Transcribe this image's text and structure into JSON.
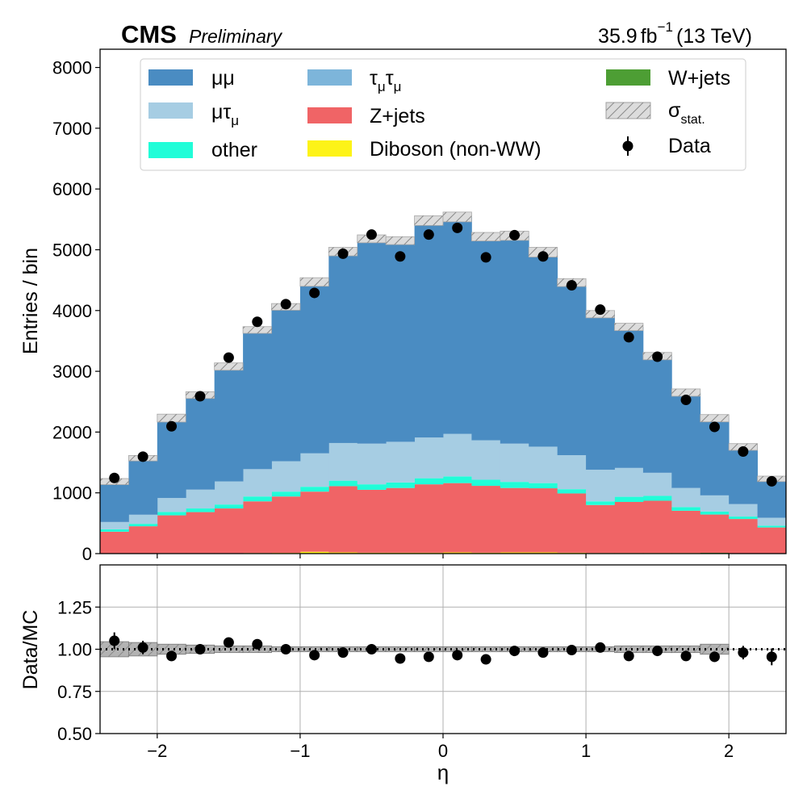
{
  "header": {
    "experiment": "CMS",
    "status": "Preliminary",
    "lumi_value": "35.9",
    "lumi_unit": "fb",
    "lumi_exponent": "−1",
    "energy": "(13 TeV)"
  },
  "colors": {
    "mumu": "#4a8cc2",
    "mutau": "#a6cde3",
    "tautau": "#7db5da",
    "zjets": "#f06466",
    "other": "#21fdd8",
    "diboson": "#fdf318",
    "wjets": "#4d9e34",
    "stat_band": "#dcdcdc",
    "stat_band_ratio": "#b3b3b3",
    "data": "#000000"
  },
  "chart_data": [
    {
      "type": "area",
      "stacked": true,
      "title": "",
      "xlabel": "",
      "ylabel": "Entries / bin",
      "xlim": [
        -2.4,
        2.4
      ],
      "ylim": [
        0,
        8300
      ],
      "yticks": [
        0,
        1000,
        2000,
        3000,
        4000,
        5000,
        6000,
        7000,
        8000
      ],
      "xticks": [
        -2,
        -1,
        0,
        1,
        2
      ],
      "grid": false,
      "legend_position": "top",
      "legend": {
        "mumu": "μμ",
        "mutau": "μτ",
        "mutau_sub": "μ",
        "tautau": "τ",
        "tautau_sub": "μ",
        "zjets": "Z+jets",
        "other": "other",
        "diboson": "Diboson (non-WW)",
        "wjets": "W+jets",
        "stat": "σ",
        "stat_sub": "stat.",
        "data": "Data"
      },
      "bin_edges": [
        -2.4,
        -2.2,
        -2.0,
        -1.8,
        -1.6,
        -1.4,
        -1.2,
        -1.0,
        -0.8,
        -0.6,
        -0.4,
        -0.2,
        0.0,
        0.2,
        0.4,
        0.6,
        0.8,
        1.0,
        1.2,
        1.4,
        1.6,
        1.8,
        2.0,
        2.2,
        2.4
      ],
      "series": [
        {
          "key": "diboson",
          "name": "Diboson (non-WW)",
          "values": [
            5,
            5,
            8,
            8,
            8,
            10,
            12,
            30,
            20,
            15,
            15,
            15,
            20,
            15,
            20,
            20,
            15,
            10,
            10,
            10,
            10,
            8,
            5,
            5
          ]
        },
        {
          "key": "wjets",
          "name": "W+jets",
          "values": [
            0,
            0,
            0,
            0,
            0,
            0,
            0,
            0,
            0,
            0,
            0,
            0,
            0,
            0,
            0,
            0,
            0,
            0,
            0,
            0,
            0,
            5,
            0,
            0
          ]
        },
        {
          "key": "zjets",
          "name": "Z+jets",
          "values": [
            355,
            445,
            622,
            675,
            735,
            850,
            928,
            990,
            1090,
            1035,
            1065,
            1125,
            1140,
            1100,
            1060,
            1055,
            975,
            790,
            840,
            860,
            695,
            630,
            565,
            425
          ]
        },
        {
          "key": "other",
          "name": "other",
          "values": [
            40,
            40,
            55,
            60,
            65,
            80,
            80,
            80,
            90,
            90,
            90,
            100,
            110,
            100,
            100,
            85,
            70,
            60,
            85,
            80,
            60,
            50,
            40,
            30
          ]
        },
        {
          "key": "tautau",
          "name": "τμτμ",
          "values": [
            0,
            0,
            0,
            0,
            0,
            0,
            0,
            0,
            0,
            0,
            0,
            0,
            0,
            0,
            0,
            0,
            0,
            0,
            0,
            0,
            0,
            0,
            0,
            0
          ]
        },
        {
          "key": "mutau",
          "name": "μτμ",
          "values": [
            120,
            150,
            230,
            310,
            380,
            450,
            500,
            550,
            620,
            670,
            670,
            670,
            700,
            650,
            630,
            600,
            560,
            520,
            475,
            380,
            315,
            265,
            205,
            130
          ]
        },
        {
          "key": "mumu",
          "name": "μμ",
          "values": [
            665,
            930,
            1315,
            1555,
            1890,
            2290,
            2540,
            2820,
            3150,
            3370,
            3310,
            3570,
            3570,
            3350,
            3420,
            3200,
            2840,
            2560,
            2320,
            1920,
            1570,
            1270,
            940,
            640
          ]
        }
      ],
      "stat_uncertainty": [
        50,
        45,
        65,
        55,
        60,
        55,
        55,
        70,
        70,
        65,
        65,
        80,
        80,
        70,
        75,
        80,
        65,
        60,
        60,
        60,
        60,
        60,
        55,
        45
      ],
      "data": {
        "x": [
          -2.3,
          -2.1,
          -1.9,
          -1.7,
          -1.5,
          -1.3,
          -1.1,
          -0.9,
          -0.7,
          -0.5,
          -0.3,
          -0.1,
          0.1,
          0.3,
          0.5,
          0.7,
          0.9,
          1.1,
          1.3,
          1.5,
          1.7,
          1.9,
          2.1,
          2.3
        ],
        "y": [
          1245,
          1595,
          2095,
          2590,
          3225,
          3815,
          4105,
          4290,
          4935,
          5250,
          4890,
          5250,
          5360,
          4875,
          5240,
          4890,
          4415,
          4015,
          3560,
          3240,
          2530,
          2085,
          1680,
          1190
        ]
      }
    },
    {
      "type": "scatter",
      "title": "",
      "xlabel": "η",
      "ylabel": "Data/MC",
      "xlim": [
        -2.4,
        2.4
      ],
      "ylim": [
        0.5,
        1.5
      ],
      "yticks": [
        "0.50",
        "0.75",
        "1.00",
        "1.25"
      ],
      "ytick_values": [
        0.5,
        0.75,
        1.0,
        1.25
      ],
      "xticks": [
        -2,
        -1,
        0,
        1,
        2
      ],
      "xtick_labels": [
        "−2",
        "−1",
        "0",
        "1",
        "2"
      ],
      "grid": true,
      "reference_line": 1.0,
      "x": [
        -2.3,
        -2.1,
        -1.9,
        -1.7,
        -1.5,
        -1.3,
        -1.1,
        -0.9,
        -0.7,
        -0.5,
        -0.3,
        -0.1,
        0.1,
        0.3,
        0.5,
        0.7,
        0.9,
        1.1,
        1.3,
        1.5,
        1.7,
        1.9,
        2.1,
        2.3
      ],
      "y": [
        1.05,
        1.01,
        0.96,
        1.0,
        1.04,
        1.03,
        1.0,
        0.965,
        0.98,
        1.0,
        0.945,
        0.955,
        0.965,
        0.94,
        0.99,
        0.98,
        0.995,
        1.01,
        0.96,
        0.99,
        0.96,
        0.955,
        0.98,
        0.955
      ],
      "yerr": [
        0.05,
        0.04,
        0.03,
        0.03,
        0.025,
        0.02,
        0.02,
        0.02,
        0.02,
        0.02,
        0.02,
        0.02,
        0.02,
        0.02,
        0.02,
        0.02,
        0.02,
        0.02,
        0.02,
        0.02,
        0.02,
        0.03,
        0.04,
        0.05
      ],
      "band": [
        0.045,
        0.04,
        0.03,
        0.025,
        0.02,
        0.02,
        0.015,
        0.015,
        0.015,
        0.015,
        0.015,
        0.015,
        0.015,
        0.015,
        0.015,
        0.015,
        0.015,
        0.015,
        0.02,
        0.02,
        0.02,
        0.03,
        0.035,
        0.045
      ]
    }
  ]
}
